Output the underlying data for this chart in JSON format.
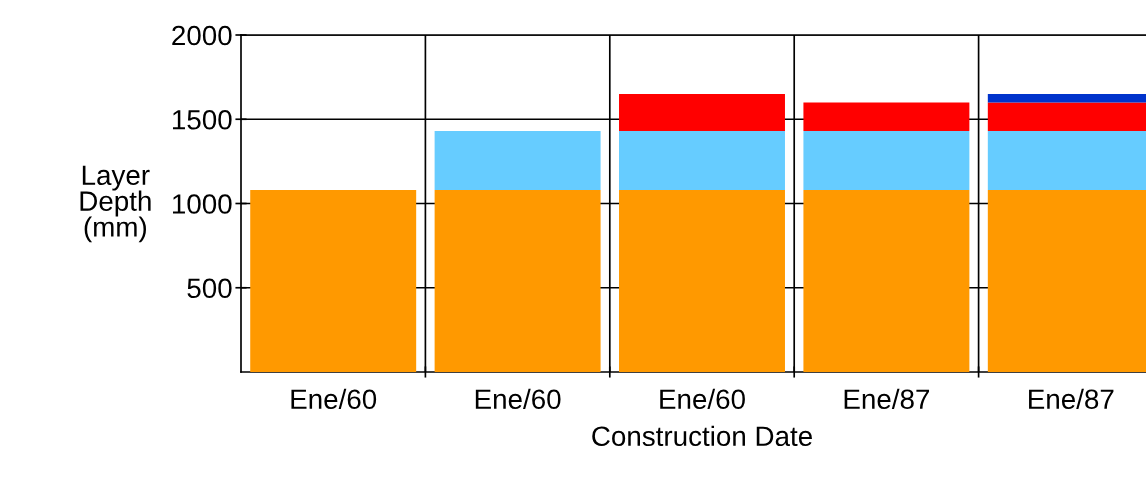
{
  "chart_data": {
    "type": "bar",
    "stacked": true,
    "xlabel": "Construction Date",
    "ylabel": "Layer\nDepth\n(mm)",
    "categories": [
      "Ene/60",
      "Ene/60",
      "Ene/60",
      "Ene/87",
      "Ene/87"
    ],
    "series": [
      {
        "color": "#ff9900",
        "values": [
          1080,
          1080,
          1080,
          1080,
          1080
        ]
      },
      {
        "color": "#66ccff",
        "values": [
          0,
          350,
          350,
          350,
          350
        ]
      },
      {
        "color": "#ff0000",
        "values": [
          0,
          0,
          220,
          170,
          170
        ]
      },
      {
        "color": "#0033cc",
        "values": [
          0,
          0,
          0,
          0,
          50
        ]
      }
    ],
    "ylim": [
      0,
      2000
    ],
    "yticks": [
      500,
      1000,
      1500,
      2000
    ],
    "grid": true
  }
}
